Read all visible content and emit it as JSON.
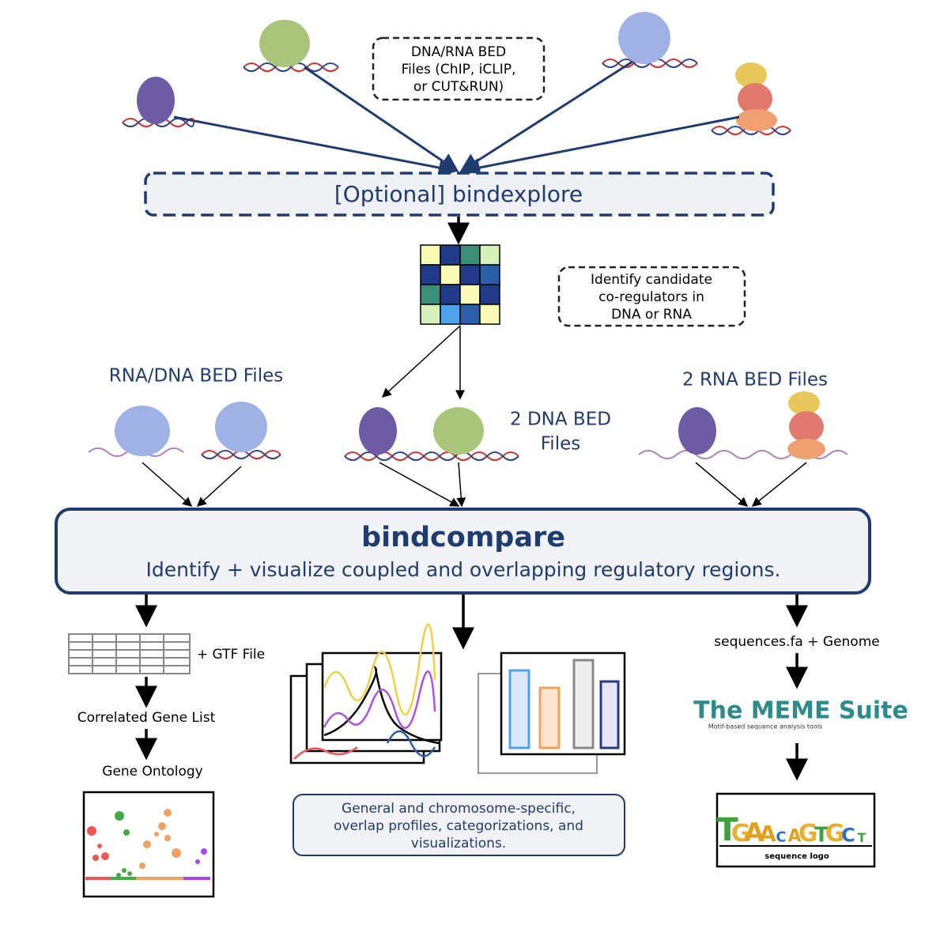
{
  "input_box": {
    "lines": [
      "DNA/RNA BED",
      "Files (ChIP, iCLIP,",
      "or CUT&RUN)"
    ]
  },
  "bindexplore": {
    "label": "[Optional] bindexplore"
  },
  "coregulator_box": {
    "lines": [
      "Identify candidate",
      "co-regulators in",
      "DNA or RNA"
    ]
  },
  "inputs": {
    "left": "RNA/DNA BED Files",
    "middle": [
      "2 DNA BED",
      "Files"
    ],
    "right": "2 RNA BED Files"
  },
  "bindcompare": {
    "title": "bindcompare",
    "subtitle": "Identify + visualize coupled and overlapping regulatory regions."
  },
  "left_branch": {
    "gtf": "+ GTF File",
    "gene_list": "Correlated Gene List",
    "ontology": "Gene Ontology"
  },
  "middle_branch": {
    "lines": [
      "General and chromosome-specific,",
      "overlap profiles, categorizations, and",
      "visualizations."
    ]
  },
  "right_branch": {
    "input": "sequences.fa + Genome",
    "meme_title": "The MEME Suite",
    "meme_subtitle": "Motif-based sequence analysis tools",
    "logo_letters": [
      "T",
      "G",
      "A",
      "A",
      "C",
      "A",
      "G",
      "T",
      "G",
      "C",
      "T"
    ],
    "logo_caption": "sequence logo"
  }
}
